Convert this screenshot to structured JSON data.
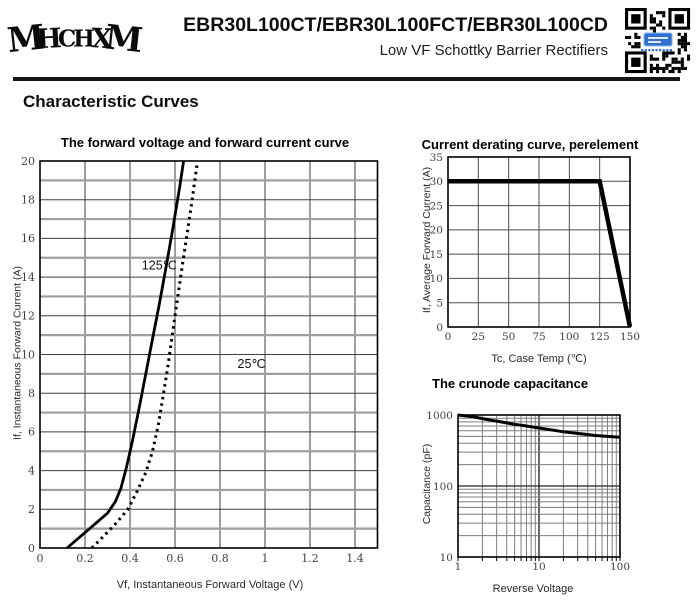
{
  "header": {
    "logo_text": "MHCHXM",
    "title": "EBR30L100CT/EBR30L100FCT/EBR30L100CD",
    "subtitle": "Low VF Schottky Barrier Rectifiers"
  },
  "section_heading": "Characteristic Curves",
  "chart_data": [
    {
      "id": "forward-voltage-current",
      "type": "line",
      "title": "The forward voltage and forward current curve",
      "xlabel": "Vf, Instantaneous Forward Voltage (V)",
      "ylabel": "If, Instantaneous Forward Current (A)",
      "x_axis": {
        "scale": "linear",
        "min": 0,
        "max": 1.5,
        "grid_step": 0.2,
        "tick_step": 0.2,
        "tick_labels": [
          "0",
          "0.2",
          "0.4",
          "0.6",
          "0.8",
          "1",
          "1.2",
          "1.4"
        ]
      },
      "y_axis": {
        "scale": "linear",
        "min": 0,
        "max": 20,
        "grid_step": 1,
        "tick_step": 2,
        "tick_labels": [
          "0",
          "2",
          "4",
          "6",
          "8",
          "10",
          "12",
          "14",
          "16",
          "18",
          "20"
        ]
      },
      "series": [
        {
          "name": "125℃",
          "line": "solid",
          "points": [
            [
              0.12,
              0
            ],
            [
              0.18,
              0.6
            ],
            [
              0.24,
              1.2
            ],
            [
              0.3,
              1.8
            ],
            [
              0.335,
              2.4
            ],
            [
              0.36,
              3.1
            ],
            [
              0.385,
              4.2
            ],
            [
              0.41,
              5.5
            ],
            [
              0.44,
              7.2
            ],
            [
              0.47,
              9.0
            ],
            [
              0.5,
              10.8
            ],
            [
              0.53,
              12.6
            ],
            [
              0.56,
              14.5
            ],
            [
              0.59,
              16.5
            ],
            [
              0.62,
              18.6
            ],
            [
              0.638,
              20
            ]
          ]
        },
        {
          "name": "25℃",
          "line": "dashed",
          "points": [
            [
              0.23,
              0
            ],
            [
              0.29,
              0.7
            ],
            [
              0.34,
              1.3
            ],
            [
              0.39,
              2.0
            ],
            [
              0.43,
              2.9
            ],
            [
              0.47,
              3.9
            ],
            [
              0.5,
              5.0
            ],
            [
              0.525,
              6.3
            ],
            [
              0.545,
              7.7
            ],
            [
              0.57,
              9.5
            ],
            [
              0.6,
              12.0
            ],
            [
              0.635,
              14.8
            ],
            [
              0.67,
              17.5
            ],
            [
              0.7,
              20
            ]
          ]
        }
      ],
      "annotations": [
        {
          "text": "125℃",
          "x": 0.53,
          "y": 14.6
        },
        {
          "text": "25℃",
          "x": 0.94,
          "y": 9.5
        }
      ]
    },
    {
      "id": "current-derating",
      "type": "line",
      "title": "Current derating curve, perelement",
      "xlabel": "Tc, Case Temp (℃)",
      "ylabel": "If, Average Forward Current (A)",
      "x_axis": {
        "scale": "linear",
        "min": 0,
        "max": 150,
        "grid_step": 25,
        "tick_step": 25,
        "tick_labels": [
          "0",
          "25",
          "50",
          "75",
          "100",
          "125",
          "150"
        ]
      },
      "y_axis": {
        "scale": "linear",
        "min": 0,
        "max": 35,
        "grid_step": 5,
        "tick_step": 5,
        "tick_labels": [
          "0",
          "5",
          "10",
          "15",
          "20",
          "25",
          "30",
          "35"
        ]
      },
      "series": [
        {
          "name": "derating",
          "line": "solid",
          "points": [
            [
              0,
              30
            ],
            [
              125,
              30
            ],
            [
              150,
              0
            ]
          ]
        }
      ],
      "annotations": []
    },
    {
      "id": "junction-capacitance",
      "type": "line",
      "title": "The crunode capacitance",
      "xlabel": "Reverse Voltage",
      "ylabel": "Capacitance (pF)",
      "x_axis": {
        "scale": "log",
        "min": 1,
        "max": 100,
        "tick_labels": [
          "1",
          "10",
          "100"
        ]
      },
      "y_axis": {
        "scale": "log",
        "min": 10,
        "max": 1000,
        "tick_labels": [
          "10",
          "100",
          "1000"
        ]
      },
      "series": [
        {
          "name": "capacitance",
          "line": "solid",
          "points": [
            [
              1,
              1000
            ],
            [
              1.5,
              950
            ],
            [
              2,
              890
            ],
            [
              3,
              820
            ],
            [
              4,
              775
            ],
            [
              5,
              740
            ],
            [
              7,
              700
            ],
            [
              10,
              655
            ],
            [
              15,
              610
            ],
            [
              20,
              580
            ],
            [
              30,
              550
            ],
            [
              50,
              515
            ],
            [
              70,
              500
            ],
            [
              100,
              487
            ]
          ]
        }
      ],
      "annotations": []
    }
  ]
}
